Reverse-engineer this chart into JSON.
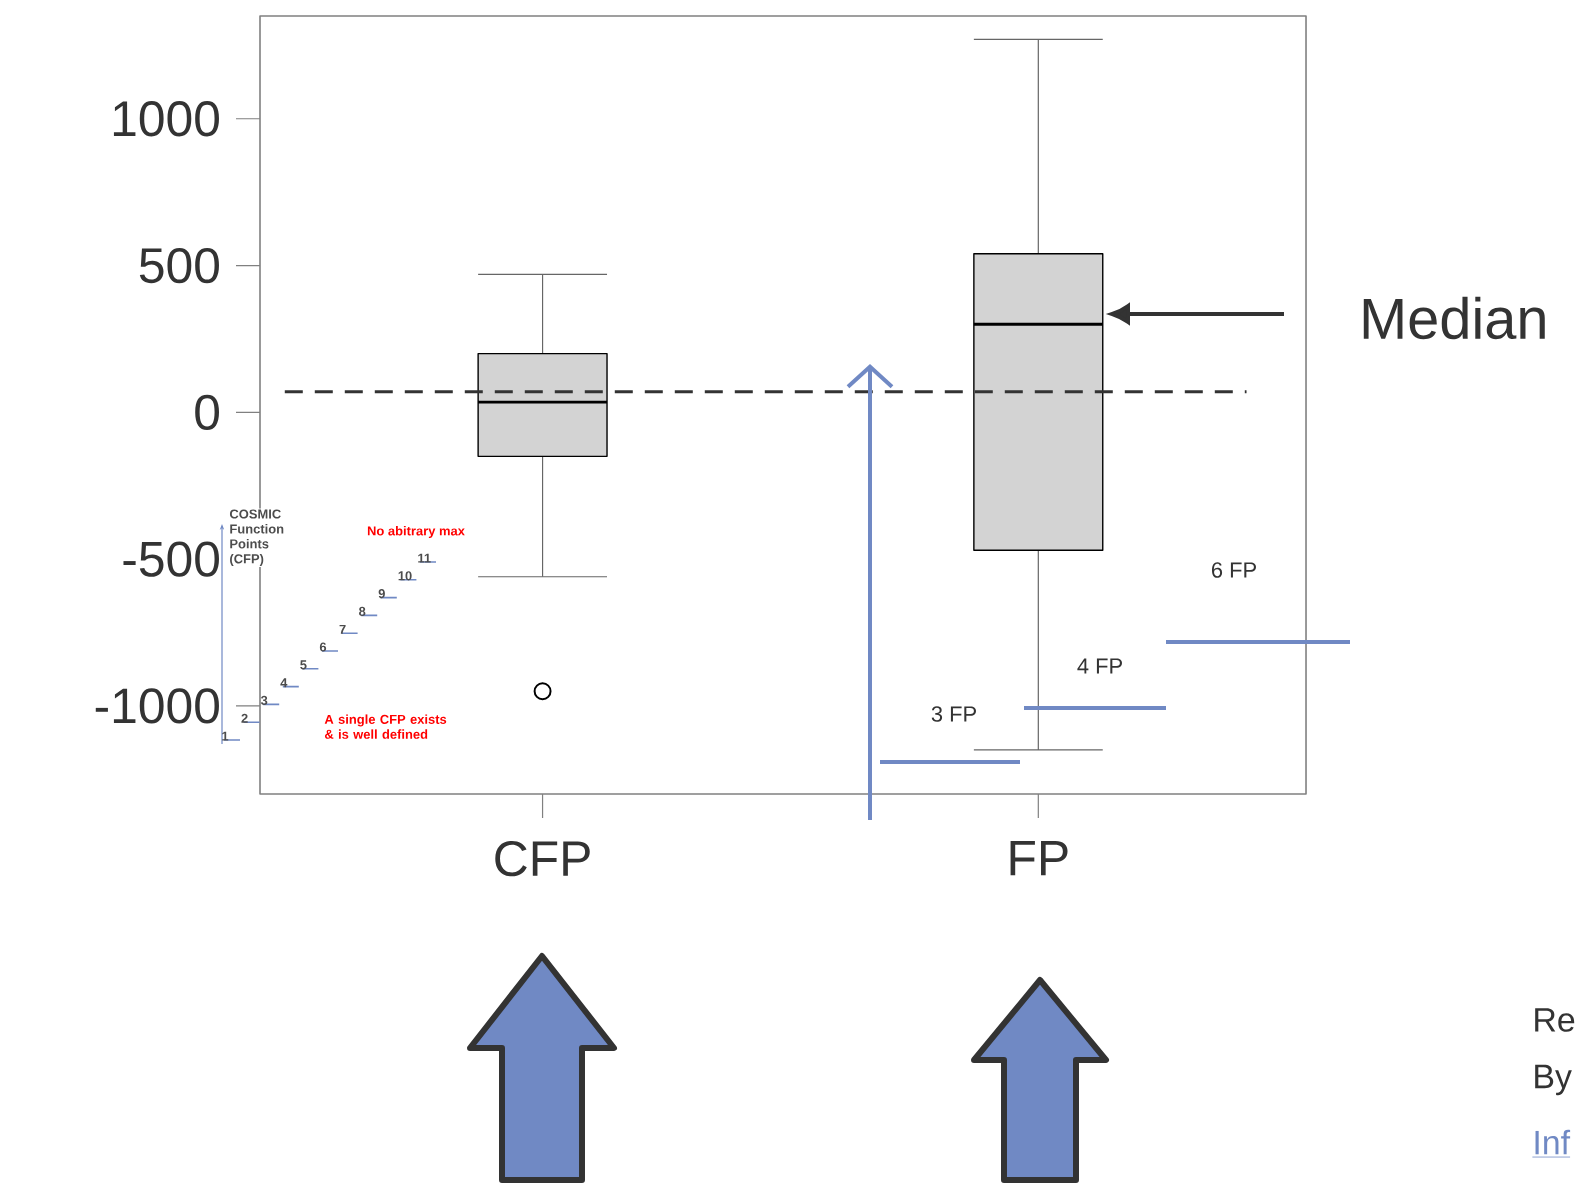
{
  "chart_data": {
    "type": "box",
    "categories": [
      "CFP",
      "FP"
    ],
    "series": [
      {
        "color": "#d3d3d3",
        "boxes": [
          {
            "low": -560,
            "q1": -150,
            "median": 35,
            "q3": 200,
            "high": 470,
            "outliers": [
              -950
            ]
          },
          {
            "low": -1150,
            "q1": -470,
            "median": 300,
            "q3": 540,
            "high": 1270
          }
        ]
      }
    ],
    "ylim": [
      -1300,
      1350
    ],
    "yticks": [
      -1000,
      -500,
      0,
      500,
      1000
    ],
    "ref_lines": [
      {
        "axis": "y",
        "value": 70,
        "line_style": "dashed",
        "color": "#333333"
      }
    ],
    "annotations": [
      "Median",
      "3 FP",
      "4 FP",
      "6 FP",
      "COSMIC Function Points (CFP)",
      "No abitrary max",
      "A single CFP exists & is well defined",
      "1",
      "2",
      "3",
      "4",
      "5",
      "6",
      "7",
      "8",
      "9",
      "10",
      "11",
      "Re",
      "By",
      "Inf"
    ]
  }
}
